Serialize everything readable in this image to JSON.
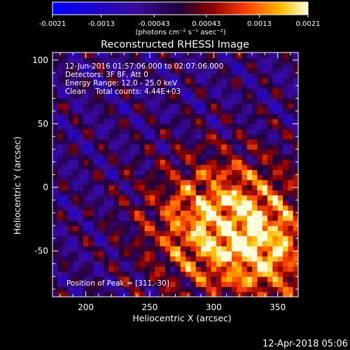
{
  "chart_data": {
    "type": "heatmap",
    "title": "Reconstructed RHESSI Image",
    "xlabel": "Heliocentric X (arcsec)",
    "ylabel": "Heliocentric Y (arcsec)",
    "xlim": [
      174,
      366
    ],
    "ylim": [
      -86,
      106
    ],
    "xticks": [
      200,
      250,
      300,
      350
    ],
    "yticks": [
      -50,
      0,
      50,
      100
    ],
    "colorbar": {
      "range": [
        -0.0021,
        0.0021
      ],
      "tick_values": [
        -0.0021,
        -0.0013,
        -0.00043,
        0.00043,
        0.0013,
        0.0021
      ],
      "tick_labels": [
        "-0.0021",
        "-0.0013",
        "-0.00043",
        "0.00043",
        "0.0013",
        "0.0021"
      ],
      "unit_label": "(photons cm⁻² s⁻¹ asec⁻²)"
    },
    "annotations": [
      "12-Jun-2016 01:57:06.000 to 02:07:06.000",
      "Detectors: 3F 8F, Att 0",
      "Energy Range: 12.0 - 25.0 keV",
      "Clean    Total counts: 4.44E+03"
    ],
    "peak_label": "Position of Peak = [311,-30]",
    "peak": [
      311,
      -30
    ]
  },
  "footer_date": "12-Apr-2018 05:06"
}
